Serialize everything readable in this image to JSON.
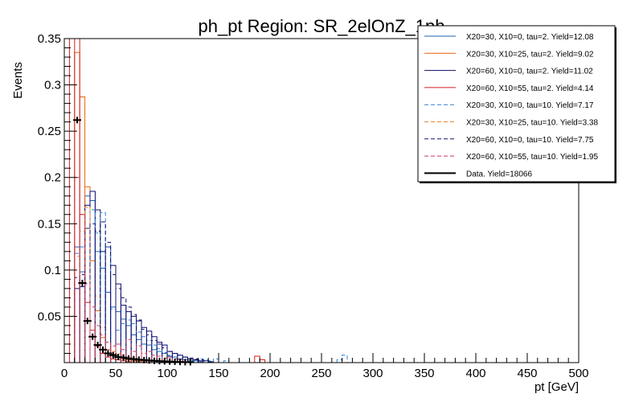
{
  "chart_data": {
    "type": "histogram",
    "title": "ph_pt Region: SR_2elOnZ_1ph",
    "xlabel": "pt [GeV]",
    "ylabel": "Events",
    "xlim": [
      0,
      500
    ],
    "ylim": [
      0,
      0.35
    ],
    "bin_width": 5,
    "x_ticks": [
      0,
      50,
      100,
      150,
      200,
      250,
      300,
      350,
      400,
      450,
      500
    ],
    "y_ticks": [
      0.05,
      0.1,
      0.15,
      0.2,
      0.25,
      0.3,
      0.35
    ],
    "y_tick_labels": [
      "0.05",
      "0.1",
      "0.15",
      "0.2",
      "0.25",
      "0.3",
      "0.35"
    ],
    "grid": false,
    "legend_position": "top-right",
    "series": [
      {
        "name": "X20=30, X10=0, tau=2. Yield=12.08",
        "color": "#1f5fb4",
        "dashed": false,
        "bins": [
          [
            10,
            0.125
          ],
          [
            15,
            0.098
          ],
          [
            20,
            0.18
          ],
          [
            25,
            0.175
          ],
          [
            30,
            0.12
          ],
          [
            35,
            0.102
          ],
          [
            40,
            0.076
          ],
          [
            45,
            0.06
          ],
          [
            50,
            0.055
          ],
          [
            55,
            0.047
          ],
          [
            60,
            0.04
          ],
          [
            65,
            0.03
          ],
          [
            70,
            0.025
          ],
          [
            75,
            0.02
          ],
          [
            80,
            0.019
          ],
          [
            85,
            0.014
          ],
          [
            90,
            0.012
          ],
          [
            95,
            0.01
          ],
          [
            100,
            0.007
          ],
          [
            105,
            0.006
          ],
          [
            110,
            0.004
          ],
          [
            115,
            0.003
          ],
          [
            120,
            0.002
          ],
          [
            125,
            0.002
          ],
          [
            130,
            0.001
          ]
        ]
      },
      {
        "name": "X20=30, X10=25, tau=2. Yield=9.02",
        "color": "#e8620c",
        "dashed": false,
        "bins": [
          [
            10,
            0.335
          ],
          [
            15,
            0.287
          ],
          [
            20,
            0.19
          ],
          [
            25,
            0.11
          ],
          [
            30,
            0.056
          ],
          [
            35,
            0.027
          ],
          [
            40,
            0.014
          ],
          [
            45,
            0.009
          ],
          [
            50,
            0.006
          ],
          [
            55,
            0.004
          ],
          [
            60,
            0.003
          ],
          [
            65,
            0.002
          ],
          [
            70,
            0.001
          ],
          [
            75,
            0.001
          ]
        ]
      },
      {
        "name": "X20=60, X10=0, tau=2. Yield=11.02",
        "color": "#0b0b6b",
        "dashed": false,
        "bins": [
          [
            10,
            0.08
          ],
          [
            15,
            0.082
          ],
          [
            20,
            0.17
          ],
          [
            25,
            0.185
          ],
          [
            30,
            0.165
          ],
          [
            35,
            0.12
          ],
          [
            40,
            0.125
          ],
          [
            45,
            0.105
          ],
          [
            50,
            0.085
          ],
          [
            55,
            0.062
          ],
          [
            60,
            0.055
          ],
          [
            65,
            0.05
          ],
          [
            70,
            0.045
          ],
          [
            75,
            0.038
          ],
          [
            80,
            0.034
          ],
          [
            85,
            0.028
          ],
          [
            90,
            0.022
          ],
          [
            95,
            0.019
          ],
          [
            100,
            0.012
          ],
          [
            105,
            0.01
          ],
          [
            110,
            0.008
          ],
          [
            115,
            0.006
          ],
          [
            120,
            0.004
          ],
          [
            125,
            0.003
          ],
          [
            130,
            0.002
          ],
          [
            135,
            0.002
          ],
          [
            140,
            0.001
          ]
        ]
      },
      {
        "name": "X20=60, X10=55, tau=2. Yield=4.14",
        "color": "#d41f1f",
        "dashed": false,
        "bins": [
          [
            5,
            0.35
          ],
          [
            10,
            0.35
          ],
          [
            15,
            0.16
          ],
          [
            20,
            0.065
          ],
          [
            25,
            0.035
          ],
          [
            30,
            0.018
          ],
          [
            35,
            0.01
          ],
          [
            40,
            0.006
          ],
          [
            45,
            0.004
          ],
          [
            50,
            0.003
          ],
          [
            55,
            0.002
          ],
          [
            60,
            0.001
          ],
          [
            185,
            0.007
          ],
          [
            190,
            0.003
          ]
        ]
      },
      {
        "name": "X20=30, X10=0, tau=10. Yield=7.17",
        "color": "#2f7fd6",
        "dashed": true,
        "bins": [
          [
            10,
            0.118
          ],
          [
            15,
            0.125
          ],
          [
            20,
            0.145
          ],
          [
            25,
            0.165
          ],
          [
            30,
            0.14
          ],
          [
            35,
            0.162
          ],
          [
            40,
            0.125
          ],
          [
            45,
            0.058
          ],
          [
            50,
            0.035
          ],
          [
            55,
            0.042
          ],
          [
            60,
            0.046
          ],
          [
            65,
            0.042
          ],
          [
            70,
            0.033
          ],
          [
            75,
            0.028
          ],
          [
            80,
            0.024
          ],
          [
            85,
            0.019
          ],
          [
            90,
            0.015
          ],
          [
            95,
            0.011
          ],
          [
            100,
            0.008
          ],
          [
            105,
            0.006
          ],
          [
            110,
            0.004
          ],
          [
            115,
            0.003
          ],
          [
            120,
            0.002
          ],
          [
            130,
            0.004
          ],
          [
            135,
            0.003
          ],
          [
            140,
            0.002
          ],
          [
            145,
            0.004
          ],
          [
            155,
            0.002
          ],
          [
            265,
            0.003
          ],
          [
            270,
            0.008
          ]
        ]
      },
      {
        "name": "X20=30, X10=25, tau=10. Yield=3.38",
        "color": "#e8832a",
        "dashed": true,
        "bins": [
          [
            10,
            0.115
          ],
          [
            15,
            0.142
          ],
          [
            20,
            0.168
          ],
          [
            25,
            0.11
          ],
          [
            30,
            0.072
          ],
          [
            35,
            0.038
          ],
          [
            40,
            0.022
          ],
          [
            45,
            0.012
          ],
          [
            50,
            0.01
          ],
          [
            55,
            0.008
          ],
          [
            60,
            0.005
          ],
          [
            65,
            0.003
          ],
          [
            70,
            0.002
          ]
        ]
      },
      {
        "name": "X20=60, X10=0, tau=10. Yield=7.75",
        "color": "#10106e",
        "dashed": true,
        "bins": [
          [
            10,
            0.092
          ],
          [
            15,
            0.095
          ],
          [
            20,
            0.145
          ],
          [
            25,
            0.15
          ],
          [
            30,
            0.142
          ],
          [
            35,
            0.152
          ],
          [
            40,
            0.13
          ],
          [
            45,
            0.095
          ],
          [
            50,
            0.08
          ],
          [
            55,
            0.07
          ],
          [
            60,
            0.06
          ],
          [
            65,
            0.052
          ],
          [
            70,
            0.046
          ],
          [
            75,
            0.036
          ],
          [
            80,
            0.03
          ],
          [
            85,
            0.024
          ],
          [
            90,
            0.02
          ],
          [
            95,
            0.016
          ],
          [
            100,
            0.012
          ],
          [
            105,
            0.01
          ],
          [
            110,
            0.008
          ],
          [
            115,
            0.006
          ],
          [
            120,
            0.005
          ],
          [
            125,
            0.004
          ],
          [
            130,
            0.003
          ],
          [
            135,
            0.002
          ],
          [
            140,
            0.001
          ]
        ]
      },
      {
        "name": "X20=60, X10=55, tau=10. Yield=1.95",
        "color": "#c9375a",
        "dashed": true,
        "bins": [
          [
            10,
            0.2
          ],
          [
            15,
            0.16
          ],
          [
            20,
            0.085
          ],
          [
            25,
            0.06
          ],
          [
            30,
            0.04
          ],
          [
            35,
            0.03
          ],
          [
            40,
            0.022
          ],
          [
            45,
            0.018
          ],
          [
            50,
            0.02
          ],
          [
            55,
            0.014
          ],
          [
            60,
            0.025
          ],
          [
            65,
            0.012
          ],
          [
            70,
            0.018
          ],
          [
            75,
            0.01
          ],
          [
            80,
            0.012
          ],
          [
            85,
            0.008
          ],
          [
            90,
            0.007
          ],
          [
            95,
            0.005
          ],
          [
            100,
            0.006
          ],
          [
            105,
            0.004
          ],
          [
            110,
            0.003
          ]
        ]
      },
      {
        "name": "Data. Yield=18066",
        "color": "#000000",
        "dashed": false,
        "points": [
          [
            12.5,
            0.262
          ],
          [
            17.5,
            0.086
          ],
          [
            22.5,
            0.045
          ],
          [
            27.5,
            0.028
          ],
          [
            32.5,
            0.019
          ],
          [
            37.5,
            0.014
          ],
          [
            42.5,
            0.01
          ],
          [
            47.5,
            0.008
          ],
          [
            52.5,
            0.006
          ],
          [
            57.5,
            0.0055
          ],
          [
            62.5,
            0.0045
          ],
          [
            67.5,
            0.0038
          ],
          [
            72.5,
            0.0032
          ],
          [
            77.5,
            0.0027
          ],
          [
            82.5,
            0.0023
          ],
          [
            87.5,
            0.0019
          ],
          [
            92.5,
            0.0016
          ],
          [
            97.5,
            0.0013
          ],
          [
            102.5,
            0.0011
          ],
          [
            107.5,
            0.0009
          ],
          [
            112.5,
            0.0007
          ],
          [
            117.5,
            0.0005
          ],
          [
            122.5,
            0.0004
          ]
        ]
      }
    ]
  }
}
